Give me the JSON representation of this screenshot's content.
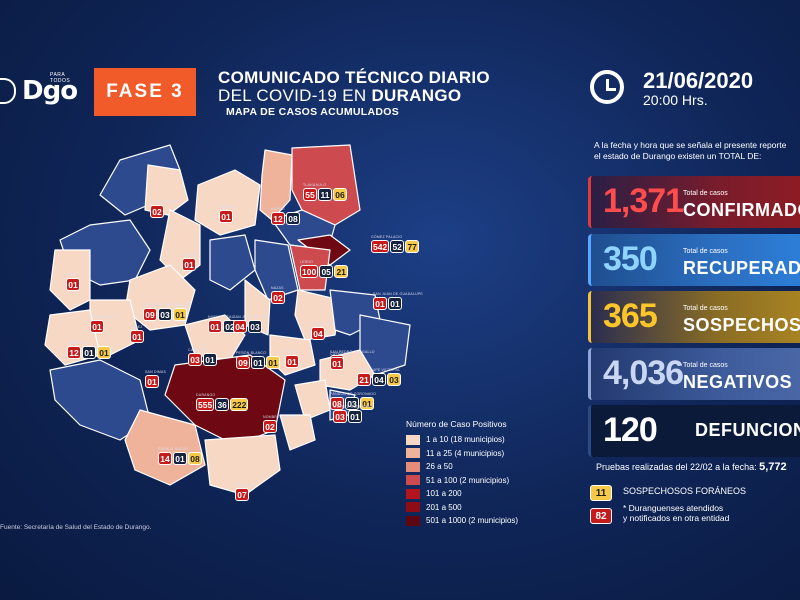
{
  "header": {
    "logo_text": "Dgo",
    "logo_tagline": "PARA TODOS",
    "fase": "FASE 3",
    "title_line1": "COMUNICADO TÉCNICO DIARIO",
    "title_line2_prefix": "DEL COVID-19 EN ",
    "title_line2_strong": "DURANGO",
    "subtitle": "MAPA DE CASOS ACUMULADOS",
    "date": "21/06/2020",
    "time": "20:00 Hrs."
  },
  "intro": {
    "line1": "A la fecha y hora que se señala el presente reporte",
    "line2": "el estado de Durango existen un TOTAL DE:"
  },
  "stats": [
    {
      "value": "1,371",
      "small": "Total de casos",
      "big": "CONFIRMADOS"
    },
    {
      "value": "350",
      "small": "Total de casos",
      "big": "RECUPERADOS"
    },
    {
      "value": "365",
      "small": "Total de casos",
      "big": "SOSPECHOSOS"
    },
    {
      "value": "4,036",
      "small": "Total de casos",
      "big": "NEGATIVOS"
    },
    {
      "value": "120",
      "small": "",
      "big": "DEFUNCIONES"
    }
  ],
  "pruebas": {
    "label": "Pruebas realizadas del 22/02 a la fecha: ",
    "value": "5,772"
  },
  "foraneos": {
    "value": "11",
    "label": "SOSPECHOSOS FORÁNEOS"
  },
  "otra_entidad": {
    "value": "82",
    "line1": "* Duranguenses atendidos",
    "line2": "y notificados en otra entidad"
  },
  "legend": {
    "title": "Número de Caso Positivos",
    "items": [
      {
        "label": "1 a 10",
        "note": "(18 municipios)",
        "color": "#f6d8c4"
      },
      {
        "label": "11 a 25",
        "note": "(4 municipios)",
        "color": "#eeb39a"
      },
      {
        "label": "26 a 50",
        "note": "",
        "color": "#e58b7a"
      },
      {
        "label": "51 a 100",
        "note": "(2 municipios)",
        "color": "#cd4a4e"
      },
      {
        "label": "101 a 200",
        "note": "",
        "color": "#b3151e"
      },
      {
        "label": "201 a 500",
        "note": "",
        "color": "#8e0d14"
      },
      {
        "label": "501 a 1000",
        "note": "(2 municipios)",
        "color": "#5e0612"
      }
    ]
  },
  "source": "Fuente: Secretaría de Salud del Estado de Durango.",
  "map_colors": {
    "blue": "#2e4a8f",
    "light": "#f6d8c4",
    "mid": "#eeb39a",
    "red": "#cd4a4e",
    "dark": "#6e0812",
    "border": "#ffffff"
  },
  "map": {
    "groups": [
      {
        "name": "TLAHUALILO",
        "values": [
          "55",
          "11",
          "06"
        ]
      },
      {
        "name": "GÓMEZ PALACIO",
        "values": [
          "542",
          "52",
          "77"
        ]
      },
      {
        "name": "LERDO",
        "values": [
          "100",
          "05",
          "21"
        ]
      },
      {
        "name": "MAPIMÍ",
        "values": [
          "12",
          "08"
        ]
      },
      {
        "name": "SAN BERNARDO",
        "values": [
          "02"
        ]
      },
      {
        "name": "HIDALGO",
        "values": [
          "01"
        ]
      },
      {
        "name": "EL ORO",
        "values": [
          "01"
        ]
      },
      {
        "name": "TOPIA",
        "values": [
          "01"
        ]
      },
      {
        "name": "SANTIAGO PAPASQUIARO",
        "values": [
          "09",
          "03",
          "01"
        ]
      },
      {
        "name": "NUEVO IDEAL",
        "values": [
          "01",
          "02"
        ]
      },
      {
        "name": "NAZAS",
        "values": [
          "02"
        ]
      },
      {
        "name": "SAN JUAN DEL RÍO",
        "values": [
          "04",
          "03"
        ]
      },
      {
        "name": "RODEO",
        "values": [
          "01"
        ]
      },
      {
        "name": "SAN PEDRO DEL GALLO",
        "values": [
          "01"
        ]
      },
      {
        "name": "TEPEHUANES",
        "values": [
          "01"
        ]
      },
      {
        "name": "CONCORDIA",
        "values": [
          "04"
        ]
      },
      {
        "name": "TAMAZULA",
        "values": [
          "12",
          "01",
          "01"
        ]
      },
      {
        "name": "OTÁEZ",
        "values": [
          "01"
        ]
      },
      {
        "name": "CANATLÁN",
        "values": [
          "03",
          "01"
        ]
      },
      {
        "name": "PEÑÓN BLANCO",
        "values": [
          "09",
          "01",
          "01"
        ]
      },
      {
        "name": "SAN JUAN DE GUADALUPE",
        "values": [
          "01",
          "01"
        ]
      },
      {
        "name": "CUENCAMÉ",
        "values": [
          "01"
        ]
      },
      {
        "name": "SAN DIMAS",
        "values": [
          "01"
        ]
      },
      {
        "name": "GUADALUPE VICTORIA",
        "values": [
          "21",
          "04",
          "03"
        ]
      },
      {
        "name": "DURANGO",
        "values": [
          "555",
          "36",
          "222"
        ]
      },
      {
        "name": "PÁNUCO DE CORONADO",
        "values": [
          "08",
          "03",
          "01"
        ]
      },
      {
        "name": "VICENTE GUERRERO",
        "values": [
          "03",
          "01"
        ]
      },
      {
        "name": "NOMBRE DE DIOS",
        "values": [
          "02"
        ]
      },
      {
        "name": "PUEBLO NUEVO",
        "values": [
          "14",
          "01",
          "08"
        ]
      },
      {
        "name": "MEZQUITAL",
        "values": [
          "07"
        ]
      }
    ]
  }
}
